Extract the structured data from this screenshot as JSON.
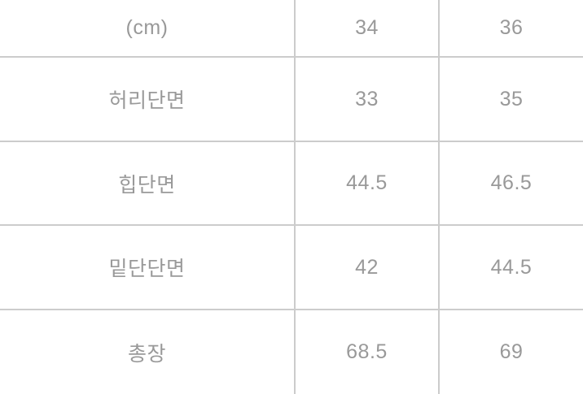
{
  "chart_data": {
    "type": "table",
    "description": "clothing size spec table in centimeters",
    "unit_header": "(cm)",
    "size_columns": [
      "34",
      "36"
    ],
    "rows": [
      {
        "label": "허리단면",
        "values": [
          "33",
          "35"
        ]
      },
      {
        "label": "힙단면",
        "values": [
          "44.5",
          "46.5"
        ]
      },
      {
        "label": "밑단단면",
        "values": [
          "42",
          "44.5"
        ]
      },
      {
        "label": "총장",
        "values": [
          "68.5",
          "69"
        ]
      }
    ]
  },
  "colors": {
    "background": "#ffffff",
    "text": "#999999",
    "grid_line": "#cccccc"
  }
}
